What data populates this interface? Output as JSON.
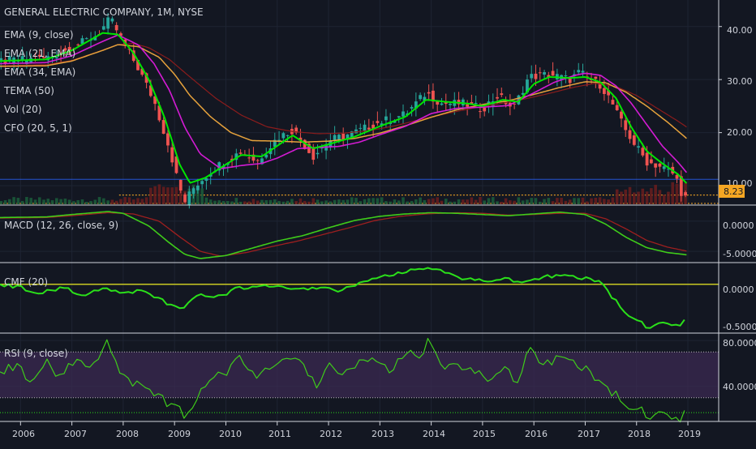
{
  "chart_data": {
    "type": "line",
    "title": "GENERAL ELECTRIC COMPANY, 1M, NYSE",
    "x_axis": {
      "ticks": [
        "2006",
        "2007",
        "2008",
        "2009",
        "2010",
        "2011",
        "2012",
        "2013",
        "2014",
        "2015",
        "2016",
        "2017",
        "2018",
        "2019"
      ],
      "range": [
        2005.6,
        2019.6
      ]
    },
    "price_pane": {
      "indicators": [
        "EMA (9, close)",
        "EMA (21, EMA)",
        "EMA (34, EMA)",
        "TEMA (50)",
        "Vol (20)",
        "CFO (20, 5, 1)"
      ],
      "y_ticks": [
        "40.00",
        "30.00",
        "20.00",
        "10.00"
      ],
      "y_range": [
        6.5,
        45
      ],
      "last_price_label": "8.23",
      "last_price": 8.23,
      "price_anchors": [
        [
          2005.6,
          33.5
        ],
        [
          2006.5,
          34
        ],
        [
          2007.0,
          36
        ],
        [
          2007.5,
          38.5
        ],
        [
          2007.75,
          41.5
        ],
        [
          2008.0,
          37
        ],
        [
          2008.3,
          32
        ],
        [
          2008.6,
          26
        ],
        [
          2008.9,
          17
        ],
        [
          2009.1,
          9.5
        ],
        [
          2009.2,
          7
        ],
        [
          2009.4,
          10
        ],
        [
          2009.8,
          13.5
        ],
        [
          2010.3,
          16.5
        ],
        [
          2010.6,
          14.5
        ],
        [
          2011.0,
          19
        ],
        [
          2011.3,
          20.5
        ],
        [
          2011.7,
          15.5
        ],
        [
          2012.0,
          18.5
        ],
        [
          2012.5,
          20
        ],
        [
          2013.0,
          22
        ],
        [
          2013.5,
          23.5
        ],
        [
          2013.9,
          27.5
        ],
        [
          2014.2,
          25.5
        ],
        [
          2014.6,
          25.5
        ],
        [
          2015.0,
          24.5
        ],
        [
          2015.3,
          27
        ],
        [
          2015.6,
          24.5
        ],
        [
          2015.9,
          30.5
        ],
        [
          2016.3,
          31
        ],
        [
          2016.7,
          30
        ],
        [
          2016.9,
          31.5
        ],
        [
          2017.0,
          30.5
        ],
        [
          2017.3,
          29
        ],
        [
          2017.5,
          26
        ],
        [
          2017.75,
          21
        ],
        [
          2017.95,
          18
        ],
        [
          2018.2,
          14.5
        ],
        [
          2018.5,
          13.5
        ],
        [
          2018.75,
          12
        ],
        [
          2018.92,
          7.5
        ],
        [
          2019.0,
          8.23
        ]
      ],
      "ema9_anchors": [
        [
          2005.6,
          33.5
        ],
        [
          2006.5,
          33.8
        ],
        [
          2007.0,
          35.5
        ],
        [
          2007.6,
          38.8
        ],
        [
          2007.9,
          38.5
        ],
        [
          2008.2,
          35
        ],
        [
          2008.5,
          30
        ],
        [
          2008.8,
          23
        ],
        [
          2009.1,
          14
        ],
        [
          2009.3,
          10.5
        ],
        [
          2009.6,
          11.5
        ],
        [
          2010.0,
          14
        ],
        [
          2010.3,
          15.8
        ],
        [
          2010.7,
          15.5
        ],
        [
          2011.0,
          17.5
        ],
        [
          2011.3,
          19.5
        ],
        [
          2011.7,
          17
        ],
        [
          2012.0,
          17.8
        ],
        [
          2012.5,
          19.2
        ],
        [
          2013.0,
          21.2
        ],
        [
          2013.5,
          23
        ],
        [
          2013.9,
          26.2
        ],
        [
          2014.3,
          25.8
        ],
        [
          2014.7,
          25.5
        ],
        [
          2015.0,
          25
        ],
        [
          2015.4,
          26.2
        ],
        [
          2015.7,
          25.8
        ],
        [
          2016.0,
          29.2
        ],
        [
          2016.3,
          30.5
        ],
        [
          2016.7,
          30.3
        ],
        [
          2017.0,
          30.5
        ],
        [
          2017.3,
          29.5
        ],
        [
          2017.6,
          26.5
        ],
        [
          2017.9,
          21
        ],
        [
          2018.2,
          16.5
        ],
        [
          2018.5,
          14.2
        ],
        [
          2018.8,
          12.2
        ],
        [
          2019.0,
          10.2
        ]
      ],
      "ema21_anchors": [
        [
          2005.6,
          33
        ],
        [
          2006.5,
          33.2
        ],
        [
          2007.0,
          34.5
        ],
        [
          2007.6,
          37.2
        ],
        [
          2007.9,
          38.4
        ],
        [
          2008.3,
          36.5
        ],
        [
          2008.6,
          33
        ],
        [
          2008.9,
          28
        ],
        [
          2009.2,
          21
        ],
        [
          2009.5,
          16
        ],
        [
          2009.9,
          13.2
        ],
        [
          2010.3,
          13.8
        ],
        [
          2010.7,
          14.2
        ],
        [
          2011.0,
          15.2
        ],
        [
          2011.4,
          17
        ],
        [
          2011.8,
          17.2
        ],
        [
          2012.2,
          17.4
        ],
        [
          2012.6,
          18.2
        ],
        [
          2013.0,
          19.6
        ],
        [
          2013.5,
          21.2
        ],
        [
          2014.0,
          23.6
        ],
        [
          2014.5,
          24.6
        ],
        [
          2015.0,
          24.8
        ],
        [
          2015.5,
          25.1
        ],
        [
          2016.0,
          27.5
        ],
        [
          2016.4,
          29.5
        ],
        [
          2016.8,
          30.8
        ],
        [
          2017.0,
          31.2
        ],
        [
          2017.3,
          30.8
        ],
        [
          2017.6,
          28.8
        ],
        [
          2017.9,
          25.5
        ],
        [
          2018.2,
          21.5
        ],
        [
          2018.5,
          17.5
        ],
        [
          2018.8,
          14.5
        ],
        [
          2019.0,
          12.2
        ]
      ],
      "ema34_anchors": [
        [
          2005.6,
          32.5
        ],
        [
          2006.5,
          32.6
        ],
        [
          2007.0,
          33.5
        ],
        [
          2007.6,
          35.5
        ],
        [
          2007.9,
          36.6
        ],
        [
          2008.3,
          36.2
        ],
        [
          2008.7,
          34.2
        ],
        [
          2009.0,
          31
        ],
        [
          2009.3,
          27
        ],
        [
          2009.7,
          23
        ],
        [
          2010.1,
          20
        ],
        [
          2010.5,
          18.5
        ],
        [
          2011.0,
          18.4
        ],
        [
          2011.5,
          18.2
        ],
        [
          2012.0,
          18.4
        ],
        [
          2012.5,
          18.9
        ],
        [
          2013.0,
          19.9
        ],
        [
          2013.5,
          21.3
        ],
        [
          2014.0,
          22.9
        ],
        [
          2014.5,
          24.3
        ],
        [
          2015.0,
          25.3
        ],
        [
          2015.5,
          26
        ],
        [
          2016.0,
          27.2
        ],
        [
          2016.5,
          28.5
        ],
        [
          2017.0,
          29.6
        ],
        [
          2017.4,
          29.4
        ],
        [
          2017.8,
          27.6
        ],
        [
          2018.2,
          25
        ],
        [
          2018.6,
          22
        ],
        [
          2019.0,
          18.7
        ]
      ],
      "tema_anchors": [
        [
          2005.6,
          32.6
        ],
        [
          2006.5,
          32.8
        ],
        [
          2007.0,
          33.6
        ],
        [
          2007.5,
          35.2
        ],
        [
          2007.9,
          36.6
        ],
        [
          2008.2,
          36.8
        ],
        [
          2008.5,
          36
        ],
        [
          2008.9,
          33.8
        ],
        [
          2009.3,
          30.5
        ],
        [
          2009.8,
          26.5
        ],
        [
          2010.3,
          23.3
        ],
        [
          2010.8,
          21.1
        ],
        [
          2011.3,
          20.2
        ],
        [
          2011.8,
          19.8
        ],
        [
          2012.3,
          19.9
        ],
        [
          2012.8,
          20.4
        ],
        [
          2013.3,
          21.3
        ],
        [
          2013.8,
          22.5
        ],
        [
          2014.3,
          23.6
        ],
        [
          2014.8,
          24.6
        ],
        [
          2015.3,
          25.4
        ],
        [
          2015.8,
          26.3
        ],
        [
          2016.3,
          27.4
        ],
        [
          2016.8,
          28.6
        ],
        [
          2017.2,
          29.3
        ],
        [
          2017.6,
          28.7
        ],
        [
          2018.0,
          27
        ],
        [
          2018.4,
          24.6
        ],
        [
          2018.8,
          22.2
        ],
        [
          2019.0,
          20.9
        ]
      ],
      "blue_level": 11.2
    },
    "macd_pane": {
      "label": "MACD (12, 26, close, 9)",
      "y_ticks": [
        "0.0000",
        "-5.0000"
      ],
      "y_range": [
        -6.6,
        2.4
      ],
      "macd_anchors": [
        [
          2005.6,
          0.6
        ],
        [
          2006.5,
          0.7
        ],
        [
          2007.0,
          1.1
        ],
        [
          2007.7,
          1.6
        ],
        [
          2008.0,
          1.3
        ],
        [
          2008.5,
          -0.8
        ],
        [
          2008.9,
          -3.6
        ],
        [
          2009.2,
          -5.5
        ],
        [
          2009.5,
          -6.2
        ],
        [
          2010.0,
          -5.7
        ],
        [
          2010.5,
          -4.5
        ],
        [
          2011.0,
          -3.3
        ],
        [
          2011.5,
          -2.4
        ],
        [
          2012.0,
          -1.1
        ],
        [
          2012.5,
          0.1
        ],
        [
          2013.0,
          0.8
        ],
        [
          2013.5,
          1.2
        ],
        [
          2014.0,
          1.4
        ],
        [
          2014.5,
          1.3
        ],
        [
          2015.0,
          1.1
        ],
        [
          2015.5,
          0.9
        ],
        [
          2016.0,
          1.2
        ],
        [
          2016.5,
          1.5
        ],
        [
          2017.0,
          1.1
        ],
        [
          2017.4,
          -0.5
        ],
        [
          2017.8,
          -2.7
        ],
        [
          2018.2,
          -4.4
        ],
        [
          2018.6,
          -5.2
        ],
        [
          2019.0,
          -5.6
        ]
      ],
      "signal_anchors": [
        [
          2005.6,
          0.5
        ],
        [
          2006.5,
          0.6
        ],
        [
          2007.0,
          0.9
        ],
        [
          2007.7,
          1.4
        ],
        [
          2008.2,
          1.2
        ],
        [
          2008.7,
          0
        ],
        [
          2009.1,
          -2.6
        ],
        [
          2009.5,
          -5
        ],
        [
          2009.9,
          -5.8
        ],
        [
          2010.4,
          -5.2
        ],
        [
          2010.9,
          -4.2
        ],
        [
          2011.4,
          -3.3
        ],
        [
          2011.9,
          -2.2
        ],
        [
          2012.4,
          -1.1
        ],
        [
          2012.9,
          0.1
        ],
        [
          2013.4,
          0.8
        ],
        [
          2013.9,
          1.2
        ],
        [
          2014.5,
          1.4
        ],
        [
          2015.0,
          1.3
        ],
        [
          2015.5,
          1
        ],
        [
          2016.0,
          1.1
        ],
        [
          2016.5,
          1.3
        ],
        [
          2017.0,
          1.3
        ],
        [
          2017.4,
          0.4
        ],
        [
          2017.8,
          -1.3
        ],
        [
          2018.2,
          -3.2
        ],
        [
          2018.6,
          -4.3
        ],
        [
          2019.0,
          -5
        ]
      ]
    },
    "cmf_pane": {
      "label": "CMF (20)",
      "y_ticks": [
        "0.0000",
        "-0.5000"
      ],
      "y_range": [
        -0.6,
        0.26
      ],
      "cmf_anchors": [
        [
          2005.6,
          0
        ],
        [
          2006.0,
          -0.04
        ],
        [
          2006.4,
          -0.12
        ],
        [
          2006.8,
          -0.03
        ],
        [
          2007.2,
          -0.13
        ],
        [
          2007.6,
          -0.05
        ],
        [
          2008.0,
          -0.1
        ],
        [
          2008.4,
          -0.08
        ],
        [
          2008.8,
          -0.22
        ],
        [
          2009.1,
          -0.32
        ],
        [
          2009.4,
          -0.14
        ],
        [
          2009.8,
          -0.17
        ],
        [
          2010.2,
          -0.06
        ],
        [
          2010.6,
          -0.03
        ],
        [
          2011.0,
          0
        ],
        [
          2011.4,
          -0.08
        ],
        [
          2011.8,
          -0.03
        ],
        [
          2012.2,
          -0.08
        ],
        [
          2012.6,
          0.02
        ],
        [
          2013.0,
          0.1
        ],
        [
          2013.4,
          0.15
        ],
        [
          2013.8,
          0.19
        ],
        [
          2014.2,
          0.17
        ],
        [
          2014.6,
          0.08
        ],
        [
          2015.0,
          0.04
        ],
        [
          2015.4,
          0.07
        ],
        [
          2015.8,
          0.03
        ],
        [
          2016.2,
          0.09
        ],
        [
          2016.6,
          0.11
        ],
        [
          2017.0,
          0.07
        ],
        [
          2017.3,
          0.04
        ],
        [
          2017.55,
          -0.18
        ],
        [
          2017.8,
          -0.36
        ],
        [
          2018.0,
          -0.45
        ],
        [
          2018.2,
          -0.53
        ],
        [
          2018.5,
          -0.49
        ],
        [
          2018.8,
          -0.51
        ],
        [
          2019.0,
          -0.44
        ]
      ]
    },
    "rsi_pane": {
      "label": "RSI (9, close)",
      "y_ticks": [
        "80.0000",
        "40.0000"
      ],
      "y_range": [
        10,
        85
      ],
      "upper_band": 70,
      "lower_band": 30,
      "rsi_anchors": [
        [
          2005.6,
          53
        ],
        [
          2005.9,
          58
        ],
        [
          2006.2,
          46
        ],
        [
          2006.5,
          60
        ],
        [
          2006.8,
          49
        ],
        [
          2007.1,
          67
        ],
        [
          2007.4,
          57
        ],
        [
          2007.7,
          80
        ],
        [
          2007.9,
          56
        ],
        [
          2008.2,
          43
        ],
        [
          2008.5,
          38
        ],
        [
          2008.8,
          27
        ],
        [
          2009.0,
          21
        ],
        [
          2009.2,
          16
        ],
        [
          2009.4,
          26
        ],
        [
          2009.7,
          45
        ],
        [
          2010.0,
          53
        ],
        [
          2010.3,
          64
        ],
        [
          2010.6,
          47
        ],
        [
          2010.9,
          61
        ],
        [
          2011.2,
          67
        ],
        [
          2011.5,
          57
        ],
        [
          2011.8,
          41
        ],
        [
          2012.0,
          59
        ],
        [
          2012.3,
          51
        ],
        [
          2012.6,
          63
        ],
        [
          2012.9,
          65
        ],
        [
          2013.2,
          55
        ],
        [
          2013.5,
          71
        ],
        [
          2013.8,
          63
        ],
        [
          2013.95,
          80
        ],
        [
          2014.2,
          56
        ],
        [
          2014.5,
          61
        ],
        [
          2014.8,
          53
        ],
        [
          2015.1,
          47
        ],
        [
          2015.4,
          56
        ],
        [
          2015.7,
          44
        ],
        [
          2015.9,
          76
        ],
        [
          2016.2,
          57
        ],
        [
          2016.5,
          66
        ],
        [
          2016.8,
          60
        ],
        [
          2017.0,
          55
        ],
        [
          2017.3,
          44
        ],
        [
          2017.6,
          32
        ],
        [
          2017.9,
          21
        ],
        [
          2018.2,
          16
        ],
        [
          2018.5,
          15
        ],
        [
          2018.8,
          12
        ],
        [
          2019.0,
          17
        ]
      ]
    },
    "colors": {
      "background": "#131722",
      "grid": "#1e2433",
      "up_candle": "#26a69a",
      "down_candle": "#ef5350",
      "ema9": "#00e600",
      "ema21": "#d41bd4",
      "ema34": "#e6a23c",
      "tema": "#8c1c1c",
      "macd": "#3fcc1a",
      "signal": "#9e1f1f",
      "cmf": "#2be01a",
      "zero_line": "#c8c822",
      "rsi": "#3fcc1a",
      "rsi_band": "#3b2a52",
      "blue_level": "#2962ff",
      "price_dotted": "#f5a623",
      "last_price_bg": "#f5a623",
      "axis_text": "#d1d4dc"
    }
  }
}
